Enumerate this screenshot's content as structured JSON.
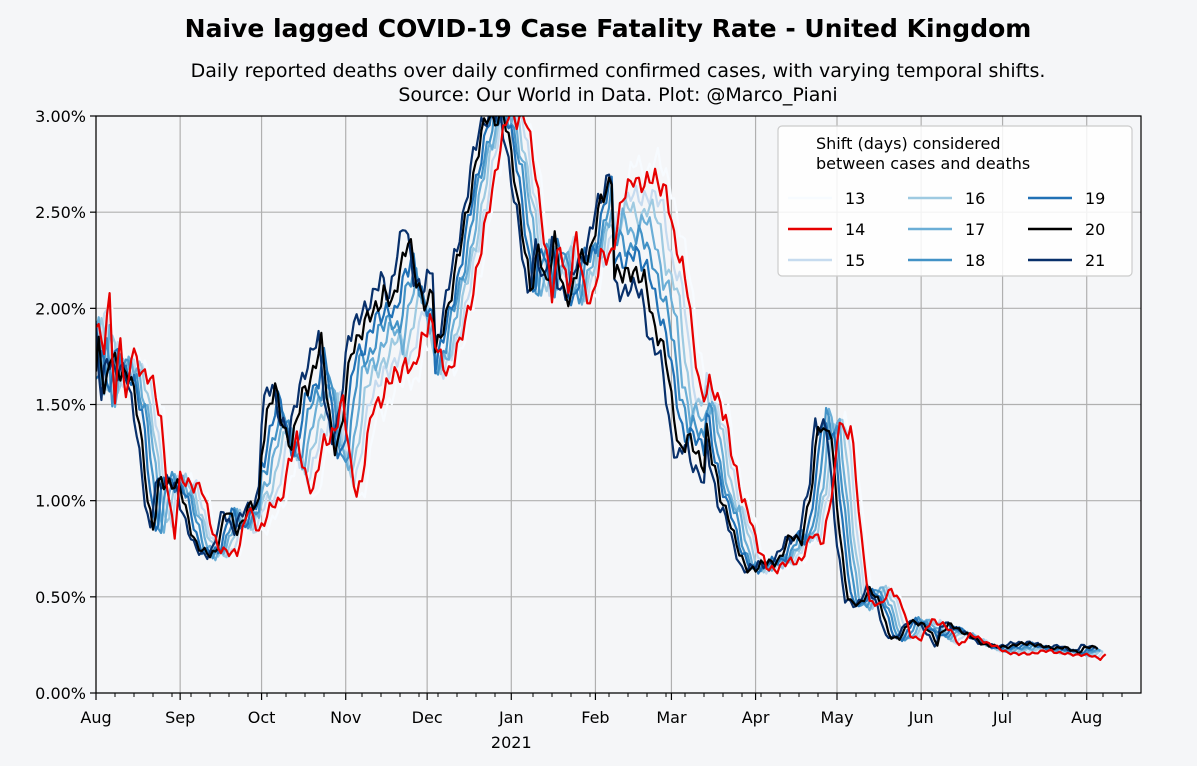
{
  "chart_data": {
    "type": "line",
    "title": "Naive lagged COVID-19 Case Fatality Rate - United Kingdom",
    "subtitle_lines": [
      "Daily reported deaths over daily confirmed confirmed cases, with varying temporal shifts.",
      "Source: Our World in Data. Plot: @Marco_Piani"
    ],
    "xlabel": "",
    "ylabel": "",
    "x_range_days": [
      0,
      385
    ],
    "ylim": [
      0,
      3.0
    ],
    "y_ticks": [
      0,
      0.5,
      1.0,
      1.5,
      2.0,
      2.5,
      3.0
    ],
    "y_tick_labels": [
      "0.00%",
      "0.50%",
      "1.00%",
      "1.50%",
      "2.00%",
      "2.50%",
      "3.00%"
    ],
    "x_ticks_days": [
      0,
      31,
      61,
      92,
      122,
      153,
      184,
      212,
      243,
      273,
      304,
      334,
      365
    ],
    "x_tick_labels": [
      "Aug",
      "Sep",
      "Oct",
      "Nov",
      "Dec",
      "Jan",
      "Feb",
      "Mar",
      "Apr",
      "May",
      "Jun",
      "Jul",
      "Aug"
    ],
    "year_label": {
      "text": "2021",
      "day": 153
    },
    "grid": true,
    "legend": {
      "position": "top-right",
      "title_lines": [
        "Shift (days) considered",
        "between cases and deaths"
      ],
      "entries": [
        "13",
        "14",
        "15",
        "16",
        "17",
        "18",
        "19",
        "20",
        "21"
      ]
    },
    "series_colors": {
      "13": "#f7fbff",
      "14": "#e60000",
      "15": "#c6dbef",
      "16": "#9ecae1",
      "17": "#6baed6",
      "18": "#4292c6",
      "19": "#2171b5",
      "20": "#000000",
      "21": "#08306b"
    },
    "base_curve_shift14": [
      [
        0,
        1.95
      ],
      [
        3,
        1.8
      ],
      [
        5,
        2.03
      ],
      [
        7,
        1.5
      ],
      [
        9,
        1.9
      ],
      [
        11,
        1.5
      ],
      [
        13,
        1.75
      ],
      [
        15,
        1.72
      ],
      [
        17,
        1.68
      ],
      [
        20,
        1.65
      ],
      [
        24,
        1.4
      ],
      [
        27,
        1.0
      ],
      [
        29,
        0.82
      ],
      [
        31,
        1.1
      ],
      [
        35,
        1.1
      ],
      [
        39,
        1.05
      ],
      [
        42,
        0.9
      ],
      [
        45,
        0.76
      ],
      [
        48,
        0.72
      ],
      [
        52,
        0.74
      ],
      [
        56,
        0.95
      ],
      [
        60,
        0.85
      ],
      [
        64,
        0.95
      ],
      [
        68,
        1.0
      ],
      [
        71,
        1.2
      ],
      [
        74,
        1.3
      ],
      [
        77,
        1.15
      ],
      [
        80,
        1.05
      ],
      [
        84,
        1.3
      ],
      [
        88,
        1.38
      ],
      [
        91,
        1.5
      ],
      [
        94,
        1.18
      ],
      [
        96,
        1.05
      ],
      [
        98,
        1.1
      ],
      [
        102,
        1.5
      ],
      [
        106,
        1.55
      ],
      [
        110,
        1.65
      ],
      [
        114,
        1.72
      ],
      [
        117,
        1.65
      ],
      [
        120,
        1.85
      ],
      [
        123,
        1.95
      ],
      [
        126,
        1.75
      ],
      [
        130,
        1.68
      ],
      [
        134,
        1.8
      ],
      [
        138,
        2.05
      ],
      [
        142,
        2.3
      ],
      [
        145,
        2.55
      ],
      [
        148,
        2.78
      ],
      [
        152,
        3.0
      ],
      [
        158,
        3.0
      ],
      [
        162,
        2.7
      ],
      [
        165,
        2.4
      ],
      [
        168,
        2.05
      ],
      [
        171,
        2.35
      ],
      [
        174,
        2.1
      ],
      [
        177,
        2.35
      ],
      [
        180,
        2.1
      ],
      [
        183,
        2.05
      ],
      [
        186,
        2.25
      ],
      [
        190,
        2.3
      ],
      [
        194,
        2.55
      ],
      [
        198,
        2.7
      ],
      [
        202,
        2.62
      ],
      [
        206,
        2.7
      ],
      [
        210,
        2.6
      ],
      [
        213,
        2.35
      ],
      [
        216,
        2.25
      ],
      [
        218,
        2.1
      ],
      [
        220,
        1.8
      ],
      [
        223,
        1.55
      ],
      [
        226,
        1.62
      ],
      [
        229,
        1.5
      ],
      [
        232,
        1.45
      ],
      [
        235,
        1.2
      ],
      [
        238,
        1.0
      ],
      [
        241,
        0.93
      ],
      [
        244,
        0.75
      ],
      [
        247,
        0.65
      ],
      [
        251,
        0.65
      ],
      [
        256,
        0.68
      ],
      [
        260,
        0.7
      ],
      [
        264,
        0.82
      ],
      [
        268,
        0.8
      ],
      [
        272,
        1.1
      ],
      [
        274,
        1.45
      ],
      [
        276,
        1.35
      ],
      [
        278,
        1.4
      ],
      [
        280,
        1.1
      ],
      [
        282,
        0.8
      ],
      [
        285,
        0.48
      ],
      [
        289,
        0.45
      ],
      [
        293,
        0.55
      ],
      [
        297,
        0.45
      ],
      [
        300,
        0.3
      ],
      [
        304,
        0.28
      ],
      [
        308,
        0.38
      ],
      [
        312,
        0.36
      ],
      [
        316,
        0.3
      ],
      [
        318,
        0.25
      ],
      [
        322,
        0.3
      ],
      [
        326,
        0.28
      ],
      [
        330,
        0.25
      ],
      [
        334,
        0.22
      ],
      [
        340,
        0.2
      ],
      [
        346,
        0.21
      ],
      [
        352,
        0.22
      ],
      [
        358,
        0.2
      ],
      [
        364,
        0.2
      ],
      [
        370,
        0.18
      ],
      [
        372,
        0.2
      ]
    ],
    "series_notes": "Each series is the base curve shifted earlier by (shift-14)*1.3 days, scaled and perturbed per shift to follow the printed rendering."
  }
}
